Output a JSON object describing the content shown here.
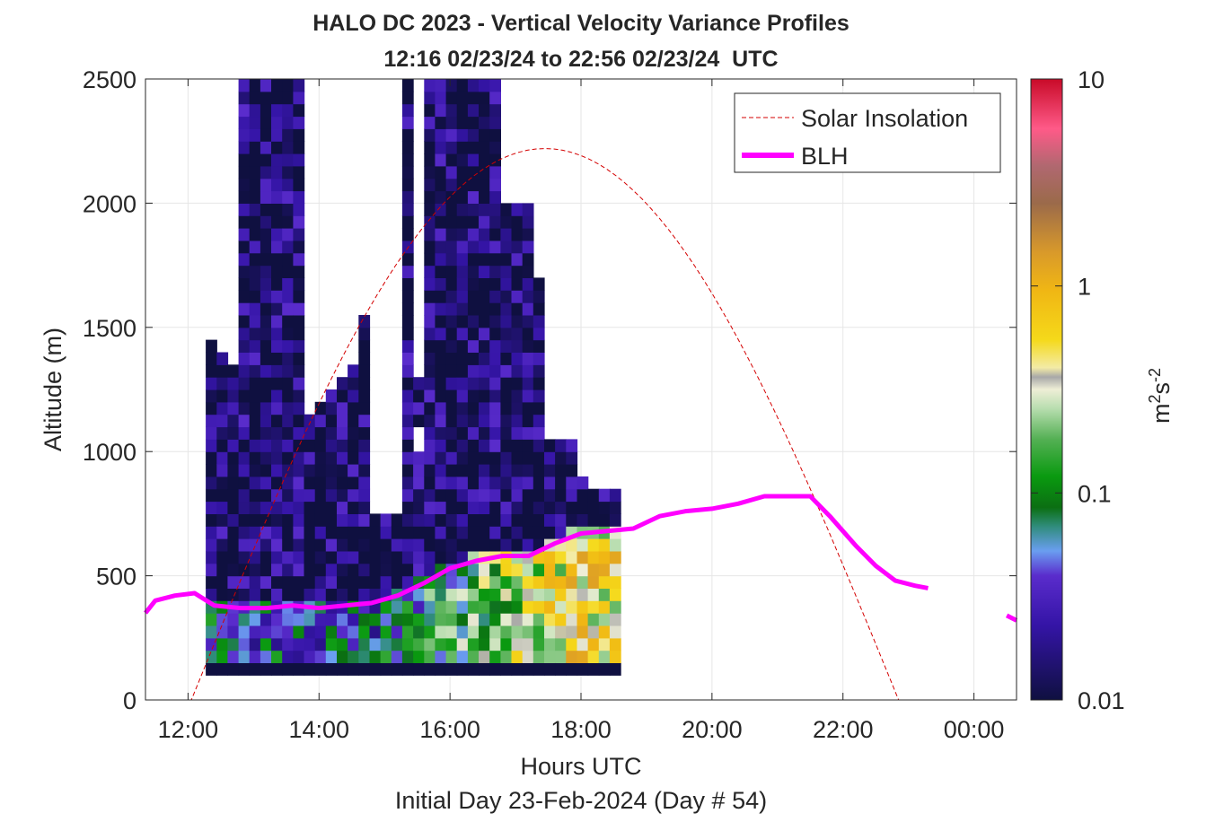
{
  "chart_data": {
    "type": "heatmap",
    "title": "HALO DC 2023 - Vertical Velocity Variance Profiles",
    "subtitle": "12:16 02/23/24 to 22:56 02/23/24  UTC",
    "xlabel": "Hours UTC",
    "xlabel2": "Initial Day 23-Feb-2024 (Day # 54)",
    "ylabel": "Altitude (m)",
    "colorbar_label_base": "m",
    "colorbar_label_mid": "s",
    "colorbar_sup1": "2",
    "colorbar_sup2": "-2",
    "xlim": [
      11.35,
      24.65
    ],
    "ylim": [
      0,
      2500
    ],
    "x_ticks": [
      12,
      14,
      16,
      18,
      20,
      22,
      24
    ],
    "x_tick_labels": [
      "12:00",
      "14:00",
      "16:00",
      "18:00",
      "20:00",
      "22:00",
      "00:00"
    ],
    "y_ticks": [
      0,
      500,
      1000,
      1500,
      2000,
      2500
    ],
    "y_tick_labels": [
      "0",
      "500",
      "1000",
      "1500",
      "2000",
      "2500"
    ],
    "colorbar_ticks": [
      0.01,
      0.1,
      1,
      10
    ],
    "colorbar_tick_labels": [
      "0.01",
      "0.1",
      "1",
      "10"
    ],
    "colorbar_scale": "log",
    "colorbar_range": [
      0.01,
      10
    ],
    "colors": {
      "solar": "#d40000",
      "blh": "#ff00ff",
      "grid": "#e6e6e6"
    },
    "grid": true,
    "legend_position": "top-right",
    "legend": [
      {
        "label": "Solar Insolation",
        "style": "dashed",
        "color": "#d40000"
      },
      {
        "label": "BLH",
        "style": "solid",
        "color": "#ff00ff"
      }
    ],
    "heatmap": {
      "time_start": 12.27,
      "time_step": 0.1667,
      "gate_size": 50,
      "gate_start": 100,
      "columns_top": [
        1450,
        1400,
        1350,
        2500,
        2500,
        2500,
        2500,
        2500,
        2500,
        1150,
        1200,
        1250,
        1300,
        1350,
        2500,
        750,
        750,
        750,
        2500,
        2500,
        2500,
        2500,
        2500,
        2500,
        2500,
        2500,
        2500,
        2000,
        2000,
        2000,
        1700,
        1050,
        1050,
        1050,
        900,
        850,
        850,
        850
      ],
      "gaps": [
        {
          "col": 9,
          "from": 1400,
          "to": 2500
        },
        {
          "col": 10,
          "from": 1250,
          "to": 2500
        },
        {
          "col": 14,
          "from": 1550,
          "to": 2500
        },
        {
          "col": 19,
          "from": 1300,
          "to": 2500
        },
        {
          "col": 19,
          "from": 1000,
          "to": 1100
        }
      ],
      "value_profile": "low-level variance 0.2-1 m2s-2 below BLH in afternoon, 0.01-0.1 m2s-2 aloft"
    },
    "blh": {
      "x": [
        11.35,
        11.5,
        11.8,
        12.1,
        12.4,
        12.8,
        13.2,
        13.6,
        14.0,
        14.4,
        14.8,
        15.2,
        15.6,
        16.0,
        16.4,
        16.8,
        17.2,
        17.6,
        18.0,
        18.4,
        18.8,
        19.2,
        19.6,
        20.0,
        20.4,
        20.8,
        21.2,
        21.5,
        21.8,
        22.0,
        22.2,
        22.5,
        22.8,
        23.1,
        23.3
      ],
      "y": [
        350,
        400,
        420,
        430,
        380,
        370,
        370,
        380,
        370,
        380,
        390,
        420,
        470,
        530,
        560,
        580,
        580,
        630,
        670,
        680,
        690,
        740,
        760,
        770,
        790,
        820,
        820,
        820,
        740,
        680,
        620,
        540,
        480,
        460,
        450
      ]
    },
    "blh_tail": {
      "x": [
        24.5,
        24.65
      ],
      "y": [
        340,
        320
      ]
    },
    "solar": {
      "sunrise": 12.05,
      "sunset": 22.85,
      "peak": 2220
    }
  }
}
